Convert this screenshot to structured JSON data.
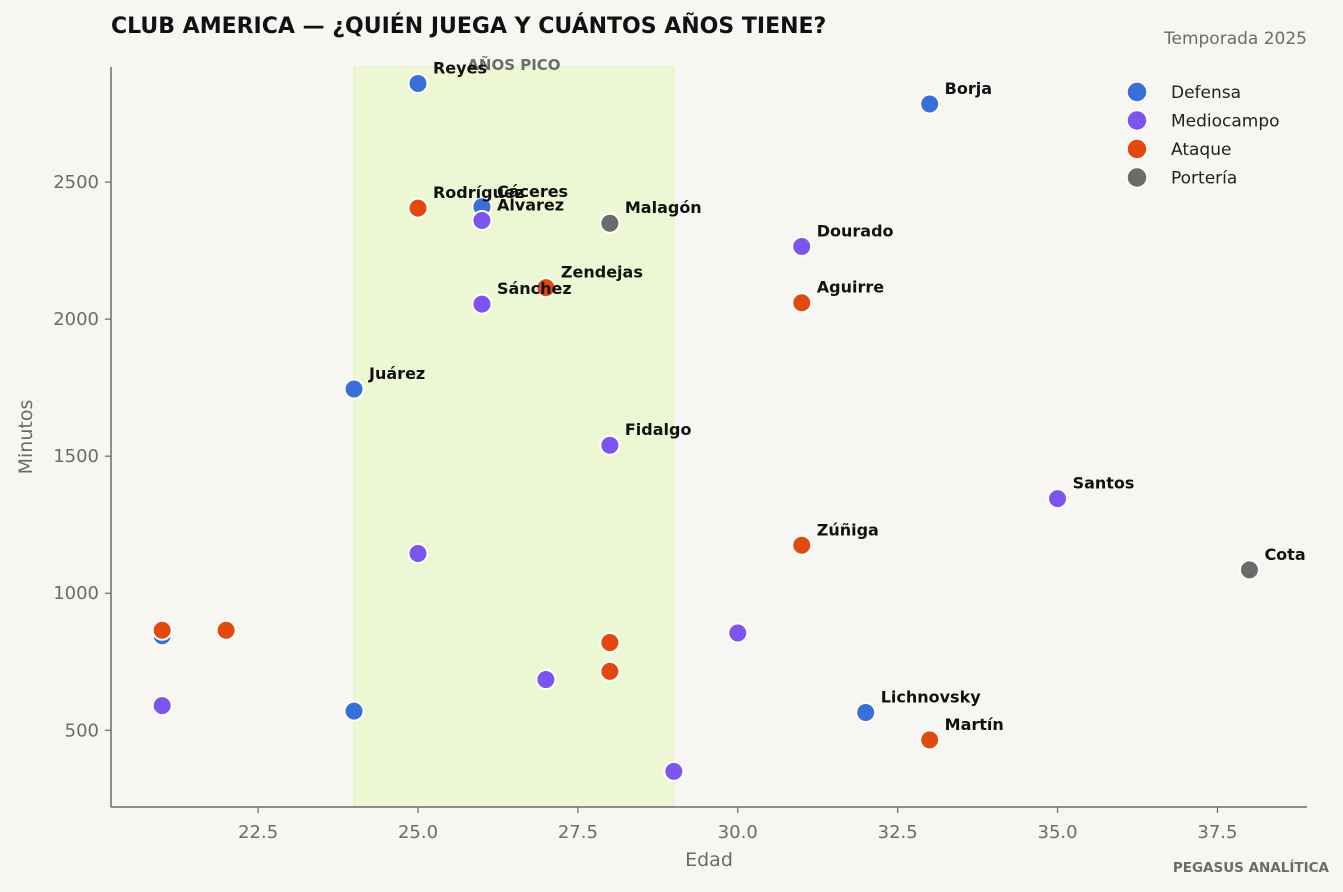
{
  "title": "CLUB AMERICA — ¿QUIÉN JUEGA Y CUÁNTOS AÑOS TIENE?",
  "season": "Temporada 2025",
  "brand": "PEGASUS ANALÍTICA",
  "colors": {
    "Defensa": "#3b6fd8",
    "Mediocampo": "#7b55ee",
    "Ataque": "#e14a0c",
    "Portería": "#6b6b69",
    "peak_band": "#eef7d3",
    "axis": "#6b6b6b"
  },
  "chart_data": {
    "type": "scatter",
    "xlabel": "Edad",
    "ylabel": "Minutos",
    "xlim": [
      20.2,
      38.9
    ],
    "ylim": [
      220,
      2920
    ],
    "xticks": [
      "22.5",
      "25.0",
      "27.5",
      "30.0",
      "32.5",
      "35.0",
      "37.5"
    ],
    "yticks": [
      "500",
      "1000",
      "1500",
      "2000",
      "2500"
    ],
    "grid": false,
    "legend_position": "top-right",
    "peak_band": {
      "label": "AÑOS PICO",
      "x_start": 24,
      "x_end": 29
    },
    "legend": [
      "Defensa",
      "Mediocampo",
      "Ataque",
      "Portería"
    ],
    "points": [
      {
        "x": 25,
        "y": 2860,
        "group": "Defensa",
        "label": "Reyes"
      },
      {
        "x": 33,
        "y": 2785,
        "group": "Defensa",
        "label": "Borja"
      },
      {
        "x": 26,
        "y": 2410,
        "group": "Defensa",
        "label": "Cáceres"
      },
      {
        "x": 25,
        "y": 2405,
        "group": "Ataque",
        "label": "Rodríguez"
      },
      {
        "x": 26,
        "y": 2360,
        "group": "Mediocampo",
        "label": "Álvarez"
      },
      {
        "x": 28,
        "y": 2350,
        "group": "Portería",
        "label": "Malagón"
      },
      {
        "x": 31,
        "y": 2265,
        "group": "Mediocampo",
        "label": "Dourado"
      },
      {
        "x": 27,
        "y": 2115,
        "group": "Ataque",
        "label": "Zendejas"
      },
      {
        "x": 26,
        "y": 2055,
        "group": "Mediocampo",
        "label": "Sánchez"
      },
      {
        "x": 31,
        "y": 2060,
        "group": "Ataque",
        "label": "Aguirre"
      },
      {
        "x": 24,
        "y": 1745,
        "group": "Defensa",
        "label": "Juárez"
      },
      {
        "x": 28,
        "y": 1540,
        "group": "Mediocampo",
        "label": "Fidalgo"
      },
      {
        "x": 35,
        "y": 1345,
        "group": "Mediocampo",
        "label": "Santos"
      },
      {
        "x": 31,
        "y": 1175,
        "group": "Ataque",
        "label": "Zúñiga"
      },
      {
        "x": 38,
        "y": 1085,
        "group": "Portería",
        "label": "Cota"
      },
      {
        "x": 25,
        "y": 1145,
        "group": "Mediocampo",
        "label": ""
      },
      {
        "x": 21,
        "y": 845,
        "group": "Defensa",
        "label": ""
      },
      {
        "x": 21,
        "y": 865,
        "group": "Ataque",
        "label": ""
      },
      {
        "x": 22,
        "y": 865,
        "group": "Ataque",
        "label": ""
      },
      {
        "x": 30,
        "y": 855,
        "group": "Mediocampo",
        "label": ""
      },
      {
        "x": 28,
        "y": 820,
        "group": "Ataque",
        "label": ""
      },
      {
        "x": 28,
        "y": 715,
        "group": "Ataque",
        "label": ""
      },
      {
        "x": 27,
        "y": 685,
        "group": "Mediocampo",
        "label": ""
      },
      {
        "x": 21,
        "y": 590,
        "group": "Mediocampo",
        "label": ""
      },
      {
        "x": 24,
        "y": 570,
        "group": "Defensa",
        "label": ""
      },
      {
        "x": 32,
        "y": 565,
        "group": "Defensa",
        "label": "Lichnovsky"
      },
      {
        "x": 33,
        "y": 465,
        "group": "Ataque",
        "label": "Martín"
      },
      {
        "x": 29,
        "y": 350,
        "group": "Mediocampo",
        "label": ""
      }
    ]
  }
}
